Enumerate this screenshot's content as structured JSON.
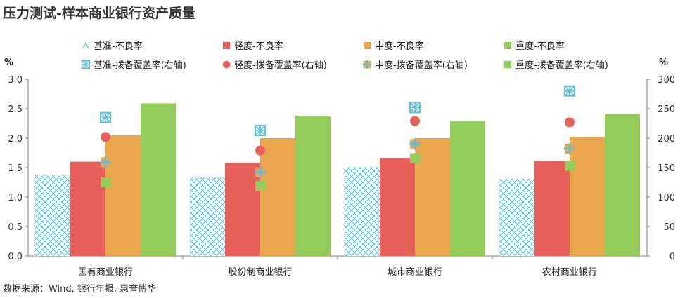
{
  "title": "压力测试-样本商业银行资产质量",
  "source": "数据来源：Wind, 银行年报, 惠誉博华",
  "colors": {
    "baseline": "#5bc0de",
    "mild": "#e8605a",
    "moderate": "#e9a64c",
    "severe": "#93cc5a",
    "axis": "#7f7f7f"
  },
  "chart_data": {
    "type": "bar",
    "categories": [
      "国有商业银行",
      "股份制商业银行",
      "城市商业银行",
      "农村商业银行"
    ],
    "y_left": {
      "unit": "%",
      "ylim": [
        0,
        3.0
      ],
      "ticks": [
        "0.0",
        "0.5",
        "1.0",
        "1.5",
        "2.0",
        "2.5",
        "3.0"
      ]
    },
    "y_right": {
      "unit": "%",
      "ylim": [
        0,
        300
      ],
      "ticks": [
        "0",
        "50",
        "100",
        "150",
        "200",
        "250",
        "300"
      ]
    },
    "grid": false,
    "legend_position": "top",
    "bar_series": [
      {
        "name": "基准-不良率",
        "values": [
          1.37,
          1.33,
          1.51,
          1.31
        ],
        "style": "hatch",
        "color": "#5bc0de"
      },
      {
        "name": "轻度-不良率",
        "values": [
          1.6,
          1.58,
          1.66,
          1.61
        ],
        "style": "solid",
        "color": "#e8605a"
      },
      {
        "name": "中度-不良率",
        "values": [
          2.05,
          2.0,
          2.0,
          2.02
        ],
        "style": "solid",
        "color": "#e9a64c"
      },
      {
        "name": "重度-不良率",
        "values": [
          2.59,
          2.38,
          2.29,
          2.41
        ],
        "style": "solid",
        "color": "#93cc5a"
      }
    ],
    "marker_series": [
      {
        "name": "基准-拨备覆盖率(右轴)",
        "values": [
          235,
          213,
          252,
          280
        ],
        "marker": "boxed-x",
        "color": "#5bc0de"
      },
      {
        "name": "轻度-拨备覆盖率(右轴)",
        "values": [
          202,
          179,
          229,
          227
        ],
        "marker": "circle",
        "color": "#e8605a"
      },
      {
        "name": "中度-拨备覆盖率(右轴)",
        "values": [
          159,
          142,
          190,
          182
        ],
        "marker": "square-plus",
        "color": "#e9a64c"
      },
      {
        "name": "重度-拨备覆盖率(右轴)",
        "values": [
          125,
          119,
          166,
          153
        ],
        "marker": "square",
        "color": "#93cc5a"
      }
    ]
  }
}
